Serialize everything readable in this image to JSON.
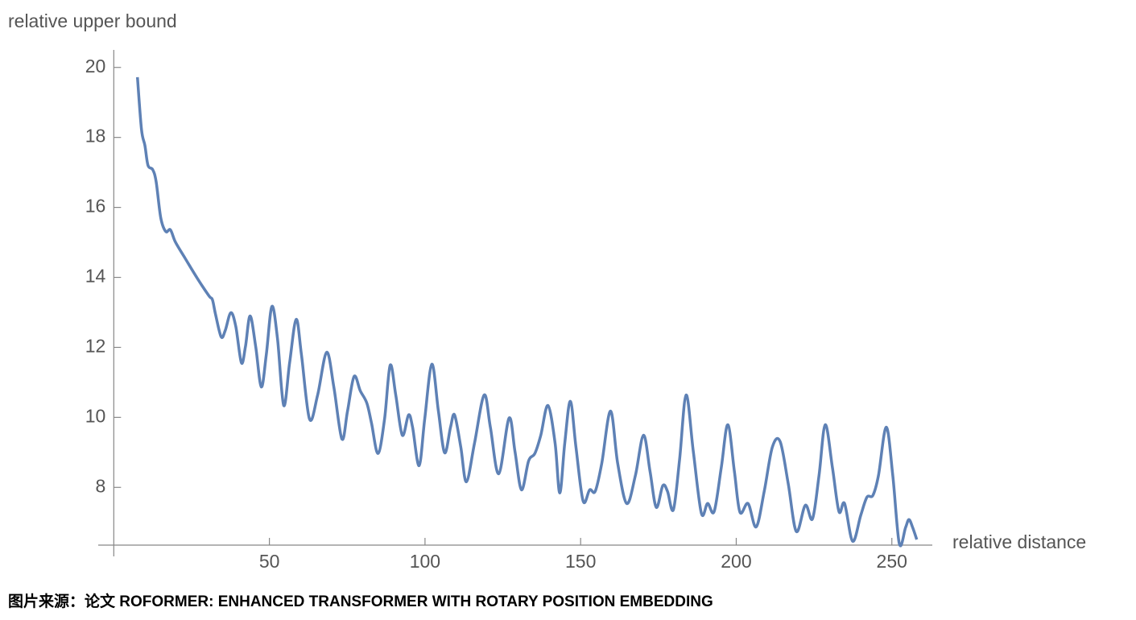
{
  "chart_data": {
    "type": "line",
    "y_label": "relative upper bound",
    "x_label": "relative distance",
    "caption": "图片来源：论文 ROFORMER: ENHANCED TRANSFORMER WITH ROTARY POSITION EMBEDDING",
    "xlim": [
      -5,
      263
    ],
    "ylim": [
      6.35,
      20.5
    ],
    "xticks": [
      50,
      100,
      150,
      200,
      250
    ],
    "yticks": [
      8,
      10,
      12,
      14,
      16,
      18,
      20
    ],
    "x": [
      7.6,
      8.9,
      10,
      11,
      12.5,
      13.6,
      15.1,
      16.7,
      18.2,
      19.8,
      22.9,
      26.8,
      30.6,
      31.7,
      32.7,
      34.5,
      35.8,
      37.6,
      39.2,
      41,
      42.3,
      43.8,
      45.6,
      47.4,
      49,
      50.8,
      52.6,
      54.6,
      56.5,
      58.6,
      60.3,
      62.9,
      65.5,
      68.4,
      70.7,
      73.3,
      75.1,
      77.2,
      79.2,
      81.3,
      82.8,
      84.9,
      87,
      88.8,
      90.6,
      92.7,
      94.7,
      96,
      98.1,
      99.9,
      102.2,
      104.3,
      106.3,
      108.2,
      109.5,
      111.5,
      113.3,
      115.9,
      119,
      121,
      123.7,
      127,
      128.9,
      131,
      133.3,
      135.3,
      137.2,
      139.5,
      141.8,
      143.3,
      144.9,
      146.7,
      148.5,
      150.8,
      152.9,
      154.7,
      156.8,
      159.6,
      161.9,
      164.8,
      167.6,
      170.2,
      172.3,
      174.3,
      176.4,
      177.9,
      179.8,
      181.8,
      183.9,
      186.2,
      188.8,
      190.8,
      192.9,
      195.2,
      197.3,
      199.4,
      201.2,
      203.8,
      206.4,
      209,
      211.6,
      214.1,
      216.7,
      219.3,
      222.2,
      224.5,
      226.6,
      228.6,
      230.9,
      233,
      234.8,
      237.4,
      240,
      242,
      243.9,
      245.7,
      248.2,
      250.3,
      252.4,
      254.4,
      255.5,
      256.7,
      258
    ],
    "series": [
      {
        "color": "#5e81b5",
        "values": [
          19.72,
          18.23,
          17.77,
          17.2,
          17.08,
          16.74,
          15.7,
          15.31,
          15.36,
          15.01,
          14.55,
          13.98,
          13.47,
          13.36,
          12.94,
          12.3,
          12.48,
          12.99,
          12.6,
          11.56,
          12.02,
          12.9,
          12.02,
          10.87,
          11.79,
          13.17,
          12.25,
          10.34,
          11.56,
          12.8,
          11.79,
          9.95,
          10.64,
          11.86,
          10.87,
          9.38,
          10.18,
          11.17,
          10.76,
          10.41,
          9.84,
          8.97,
          9.95,
          11.49,
          10.64,
          9.49,
          10.07,
          9.72,
          8.62,
          9.95,
          11.52,
          10.18,
          8.99,
          9.72,
          10.07,
          9.15,
          8.16,
          9.26,
          10.64,
          9.72,
          8.39,
          9.98,
          9.03,
          7.93,
          8.76,
          8.97,
          9.49,
          10.34,
          9.26,
          7.84,
          9.26,
          10.46,
          9.15,
          7.61,
          7.93,
          7.89,
          8.69,
          10.18,
          8.69,
          7.54,
          8.34,
          9.49,
          8.46,
          7.43,
          8.05,
          7.89,
          7.36,
          8.8,
          10.64,
          9.03,
          7.26,
          7.54,
          7.31,
          8.57,
          9.79,
          8.46,
          7.29,
          7.54,
          6.87,
          7.89,
          9.15,
          9.31,
          8.11,
          6.74,
          7.49,
          7.1,
          8.34,
          9.79,
          8.57,
          7.31,
          7.54,
          6.46,
          7.2,
          7.72,
          7.77,
          8.34,
          9.72,
          8.34,
          6.39,
          6.85,
          7.08,
          6.85,
          6.51
        ]
      }
    ]
  }
}
